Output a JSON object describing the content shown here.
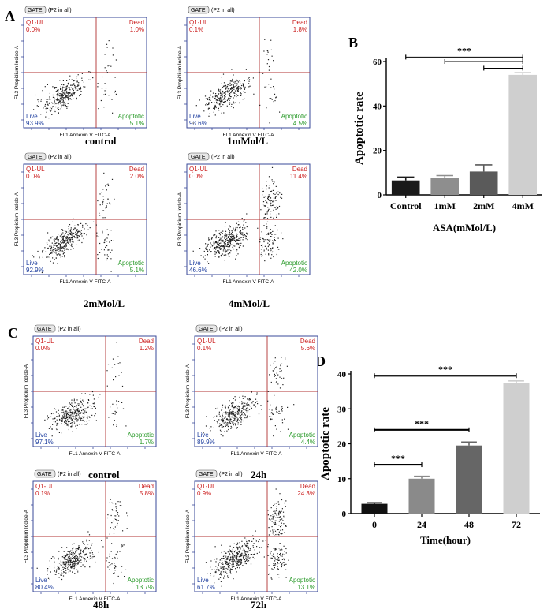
{
  "panel_labels": {
    "A": "A",
    "B": "B",
    "C": "C",
    "D": "D"
  },
  "flow_common": {
    "gate_label": "GATE",
    "gate_scope": "(P2 in all)",
    "x_axis_label": "FL1 Annexin V FITC-A",
    "y_axis_label": "FL3 Propidium Iodide-A",
    "quadrant_ul": "Q1-UL",
    "quadrant_ur": "Dead",
    "quadrant_lr": "Apoptotic",
    "quadrant_ll": "Live"
  },
  "flow_plots": [
    {
      "id": "a1",
      "caption": "control",
      "ul_pct": "0.0%",
      "ur_pct": "1.0%",
      "lr_pct": "5.1%",
      "ll_pct": "93.9%",
      "density": "low"
    },
    {
      "id": "a2",
      "caption": "1mMol/L",
      "ul_pct": "0.1%",
      "ur_pct": "1.8%",
      "lr_pct": "4.5%",
      "ll_pct": "93.6%",
      "density": "low"
    },
    {
      "id": "a3",
      "caption": "2mMol/L",
      "ul_pct": "0.0%",
      "ur_pct": "2.0%",
      "lr_pct": "5.1%",
      "ll_pct": "92.9%",
      "density": "mid"
    },
    {
      "id": "a4",
      "caption": "4mMol/L",
      "ul_pct": "0.0%",
      "ur_pct": "11.4%",
      "lr_pct": "42.0%",
      "ll_pct": "46.6%",
      "density": "high"
    },
    {
      "id": "c1",
      "caption": "control",
      "ul_pct": "0.0%",
      "ur_pct": "1.2%",
      "lr_pct": "1.7%",
      "ll_pct": "97.1%",
      "density": "low"
    },
    {
      "id": "c2",
      "caption": "24h",
      "ul_pct": "0.1%",
      "ur_pct": "5.6%",
      "lr_pct": "4.4%",
      "ll_pct": "89.9%",
      "density": "mid"
    },
    {
      "id": "c3",
      "caption": "48h",
      "ul_pct": "0.1%",
      "ur_pct": "5.8%",
      "lr_pct": "13.7%",
      "ll_pct": "80.4%",
      "density": "mid"
    },
    {
      "id": "c4",
      "caption": "72h",
      "ul_pct": "0.9%",
      "ur_pct": "24.3%",
      "lr_pct": "13.1%",
      "ll_pct": "61.7%",
      "density": "high"
    }
  ],
  "chart_data": [
    {
      "id": "B",
      "type": "bar",
      "categories": [
        "Control",
        "1mM",
        "2mM",
        "4mM"
      ],
      "values": [
        6.5,
        7.5,
        10.5,
        54
      ],
      "errors": [
        1.5,
        1.2,
        3.0,
        1.0
      ],
      "colors": [
        "#1a1a1a",
        "#8e8e8e",
        "#5a5a5a",
        "#cfcfcf"
      ],
      "ylabel": "Apoptotic rate",
      "xlabel": "ASA(mMol/L)",
      "ylim": [
        0,
        60
      ],
      "yticks": [
        0,
        20,
        40,
        60
      ],
      "significance": [
        {
          "from": 0,
          "to": 3,
          "label": "***",
          "y": 62
        },
        {
          "from": 1,
          "to": 3,
          "label": "",
          "y": 60
        },
        {
          "from": 2,
          "to": 3,
          "label": "",
          "y": 57
        }
      ]
    },
    {
      "id": "D",
      "type": "bar",
      "categories": [
        "0",
        "24",
        "48",
        "72"
      ],
      "values": [
        2.8,
        10,
        19.5,
        37.5
      ],
      "errors": [
        0.3,
        0.7,
        1.0,
        0.5
      ],
      "colors": [
        "#111111",
        "#8a8a8a",
        "#666666",
        "#cfcfcf"
      ],
      "ylabel": "Apoptotic rate",
      "xlabel": "Time(hour)",
      "ylim": [
        0,
        40
      ],
      "yticks": [
        0,
        10,
        20,
        30,
        40
      ],
      "significance": [
        {
          "from": 0,
          "to": 1,
          "label": "***",
          "y": 14
        },
        {
          "from": 0,
          "to": 2,
          "label": "***",
          "y": 24
        },
        {
          "from": 0,
          "to": 3,
          "label": "***",
          "y": 39.5
        }
      ]
    }
  ]
}
